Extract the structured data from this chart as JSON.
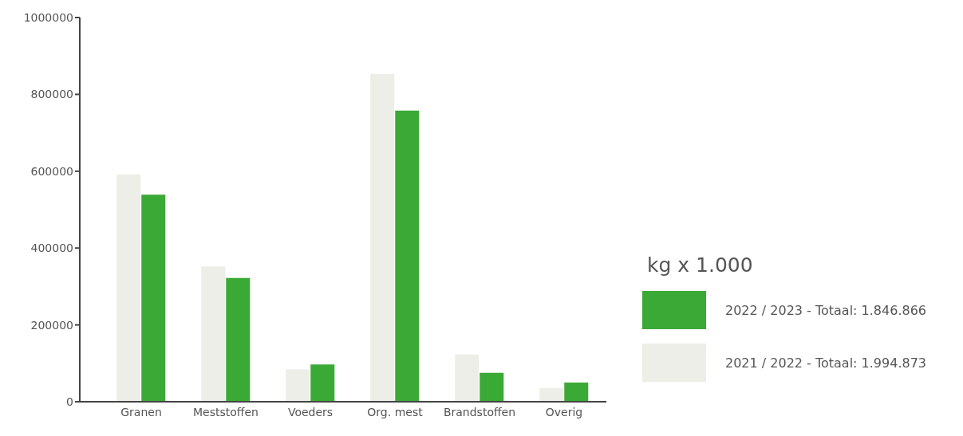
{
  "chart_data": {
    "type": "bar",
    "categories": [
      "Granen",
      "Meststoffen",
      "Voeders",
      "Org. mest",
      "Brandstoffen",
      "Overig"
    ],
    "series": [
      {
        "name": "2021 / 2022 - Totaal: 1.994.873",
        "color": "#eceee7",
        "values": [
          592000,
          352000,
          84000,
          853000,
          123000,
          36000
        ]
      },
      {
        "name": "2022 / 2023 - Totaal: 1.846.866",
        "color": "#3aa935",
        "values": [
          539000,
          322000,
          97000,
          758000,
          75000,
          50000
        ]
      }
    ],
    "ylim": [
      0,
      1000000
    ],
    "yticks": [
      0,
      200000,
      400000,
      600000,
      800000,
      1000000
    ],
    "legend": "right",
    "legend_title": "kg x 1.000"
  }
}
